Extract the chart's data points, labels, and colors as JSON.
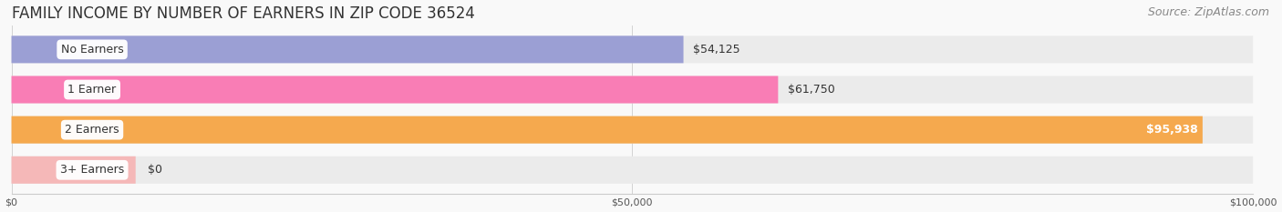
{
  "title": "FAMILY INCOME BY NUMBER OF EARNERS IN ZIP CODE 36524",
  "source": "Source: ZipAtlas.com",
  "categories": [
    "No Earners",
    "1 Earner",
    "2 Earners",
    "3+ Earners"
  ],
  "values": [
    54125,
    61750,
    95938,
    0
  ],
  "bar_colors": [
    "#9b9fd4",
    "#f97db5",
    "#f5a94e",
    "#f5b8b8"
  ],
  "bar_bg_color": "#ebebeb",
  "xlim": [
    0,
    100000
  ],
  "xtick_labels": [
    "$0",
    "$50,000",
    "$100,000"
  ],
  "background_color": "#f9f9f9",
  "title_fontsize": 12,
  "source_fontsize": 9,
  "bar_label_fontsize": 9,
  "category_fontsize": 9,
  "bar_height": 0.68,
  "value_label_inside_color": "white",
  "value_label_outside_color": "#333333",
  "inside_threshold": 0.68
}
